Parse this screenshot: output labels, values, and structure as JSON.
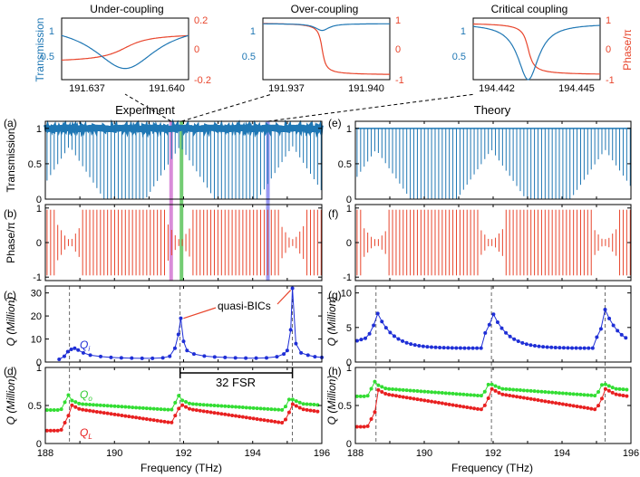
{
  "colors": {
    "blue": "#1f77b4",
    "red": "#e8452c",
    "darkblue": "#1f2fd6",
    "green": "#33dd33",
    "qred": "#e82020",
    "magenta": "#cc66cc",
    "greenband": "#44bb44",
    "blueband": "#7777ee",
    "axis": "#000000"
  },
  "chart_data": [
    {
      "id": "inset-under",
      "type": "line",
      "title": "Under-coupling",
      "ylabel": "Transmission",
      "ylabel_right": "",
      "x_ticks": [
        "191.637",
        "191.640"
      ],
      "xlim": [
        191.637,
        191.64
      ],
      "ylim": [
        0,
        1.1
      ],
      "y_ticks": [
        "0.5",
        "1"
      ],
      "y2lim": [
        -0.2,
        0.2
      ],
      "y2_ticks": [
        "-0.2",
        "0",
        "0.2"
      ],
      "series": [
        {
          "name": "transmission",
          "dip_center": 191.6385,
          "dip_depth": 0.8,
          "width": 0.0009
        },
        {
          "name": "phase",
          "dip_center": 191.6385,
          "amplitude": 0.13
        }
      ]
    },
    {
      "id": "inset-over",
      "type": "line",
      "title": "Over-coupling",
      "ylabel": "",
      "ylabel_right": "",
      "x_ticks": [
        "191.937",
        "191.940"
      ],
      "xlim": [
        191.937,
        191.94
      ],
      "ylim": [
        0,
        1.1
      ],
      "y_ticks": [
        "0.5",
        "1"
      ],
      "y2lim": [
        -1,
        1
      ],
      "y2_ticks": [
        "-1",
        "0",
        "1"
      ],
      "series": [
        {
          "name": "transmission",
          "dip_center": 191.9384,
          "dip_depth": 0.12,
          "width": 0.0002
        },
        {
          "name": "phase",
          "dip_center": 191.9384,
          "amplitude": 1
        }
      ]
    },
    {
      "id": "inset-critical",
      "type": "line",
      "title": "Critical coupling",
      "ylabel": "",
      "ylabel_right": "Phase/π",
      "x_ticks": [
        "194.442",
        "194.445"
      ],
      "xlim": [
        194.442,
        194.445
      ],
      "ylim": [
        0,
        1.1
      ],
      "y_ticks": [
        "0.5",
        "1"
      ],
      "y2lim": [
        -1,
        1
      ],
      "y2_ticks": [
        "-1",
        "0",
        "1"
      ],
      "series": [
        {
          "name": "transmission",
          "dip_center": 194.4433,
          "dip_depth": 1.0,
          "width": 0.0003
        },
        {
          "name": "phase",
          "dip_center": 194.4433,
          "amplitude": 1
        }
      ]
    },
    {
      "id": "panel-a",
      "type": "line",
      "label": "(a)",
      "column_title": "Experiment",
      "ylabel": "Transmission",
      "xlim": [
        188,
        196
      ],
      "ylim": [
        0,
        1.1
      ],
      "y_ticks": [
        "0",
        "0.5",
        "1"
      ],
      "fsr_thz": 0.103,
      "bic_frequencies_thz": [
        188.7,
        191.9,
        195.15
      ],
      "highlight_bands_thz": [
        191.64,
        191.94,
        194.44
      ]
    },
    {
      "id": "panel-b",
      "type": "line",
      "label": "(b)",
      "ylabel": "Phase/π",
      "xlim": [
        188,
        196
      ],
      "ylim": [
        -1.1,
        1.1
      ],
      "y_ticks": [
        "-1",
        "0",
        "1"
      ]
    },
    {
      "id": "panel-c",
      "type": "line",
      "label": "(c)",
      "ylabel": "Q (Million)",
      "xlim": [
        188,
        196
      ],
      "ylim": [
        0,
        33
      ],
      "y_ticks": [
        "0",
        "10",
        "20",
        "30"
      ],
      "annotation": "quasi-BICs",
      "series": [
        {
          "name": "Qᵢ",
          "label": "Q",
          "subscript": "i",
          "x": [
            188.4,
            188.55,
            188.65,
            188.75,
            188.85,
            188.95,
            189.1,
            189.3,
            189.6,
            189.9,
            190.2,
            190.5,
            190.8,
            191.1,
            191.4,
            191.6,
            191.75,
            191.85,
            191.92,
            192.0,
            192.1,
            192.3,
            192.6,
            192.9,
            193.2,
            193.5,
            193.8,
            194.1,
            194.4,
            194.7,
            194.9,
            195.0,
            195.1,
            195.15,
            195.25,
            195.4,
            195.6,
            195.8,
            196.0
          ],
          "values": [
            1.2,
            2.5,
            4.5,
            5.5,
            6.0,
            5.2,
            4.0,
            3.0,
            2.4,
            2.0,
            1.8,
            1.7,
            1.6,
            1.6,
            1.8,
            2.5,
            6.0,
            12.0,
            19.0,
            9.0,
            5.0,
            3.5,
            2.6,
            2.2,
            2.0,
            1.8,
            1.7,
            1.7,
            1.8,
            2.3,
            3.5,
            5.0,
            14.0,
            32.0,
            8.0,
            4.0,
            3.0,
            2.3,
            2.0
          ]
        }
      ]
    },
    {
      "id": "panel-d",
      "type": "line",
      "label": "(d)",
      "ylabel": "Q (Million)",
      "xlabel": "Frequency (THz)",
      "xlim": [
        188,
        196
      ],
      "ylim": [
        0,
        1
      ],
      "y_ticks": [
        "0",
        "0.5",
        "1"
      ],
      "x_ticks": [
        "188",
        "190",
        "192",
        "194",
        "196"
      ],
      "fsr_annotation": "32 FSR",
      "fsr_span_thz": [
        191.9,
        195.15
      ],
      "series": [
        {
          "name": "Qₒ",
          "label": "Q",
          "subscript": "o",
          "base": 0.44,
          "jump": 0.58,
          "slope": 0.09
        },
        {
          "name": "Qʟ",
          "label": "Q",
          "subscript": "L",
          "base": 0.17,
          "jump": 0.52,
          "slope": 0.2
        }
      ]
    },
    {
      "id": "panel-e",
      "type": "line",
      "label": "(e)",
      "column_title": "Theory",
      "xlim": [
        188,
        196
      ],
      "ylim": [
        0,
        1.1
      ],
      "y_ticks": [
        "0",
        "0.5",
        "1"
      ]
    },
    {
      "id": "panel-f",
      "type": "line",
      "label": "(f)",
      "xlim": [
        188,
        196
      ],
      "ylim": [
        -1.1,
        1.1
      ],
      "y_ticks": [
        "-1",
        "0",
        "1"
      ]
    },
    {
      "id": "panel-g",
      "type": "line",
      "label": "(g)",
      "xlim": [
        188,
        196
      ],
      "ylim": [
        0,
        11
      ],
      "y_ticks": [
        "0",
        "5",
        "10"
      ],
      "bic_frequencies_thz": [
        188.6,
        191.95,
        195.25
      ],
      "peak_value": 7.6,
      "floor_value": 2.0
    },
    {
      "id": "panel-h",
      "type": "line",
      "label": "(h)",
      "xlabel": "Frequency (THz)",
      "xlim": [
        188,
        196
      ],
      "ylim": [
        0,
        1
      ],
      "y_ticks": [
        "0",
        "0.5",
        "1"
      ],
      "x_ticks": [
        "188",
        "190",
        "192",
        "194",
        "196"
      ]
    }
  ]
}
